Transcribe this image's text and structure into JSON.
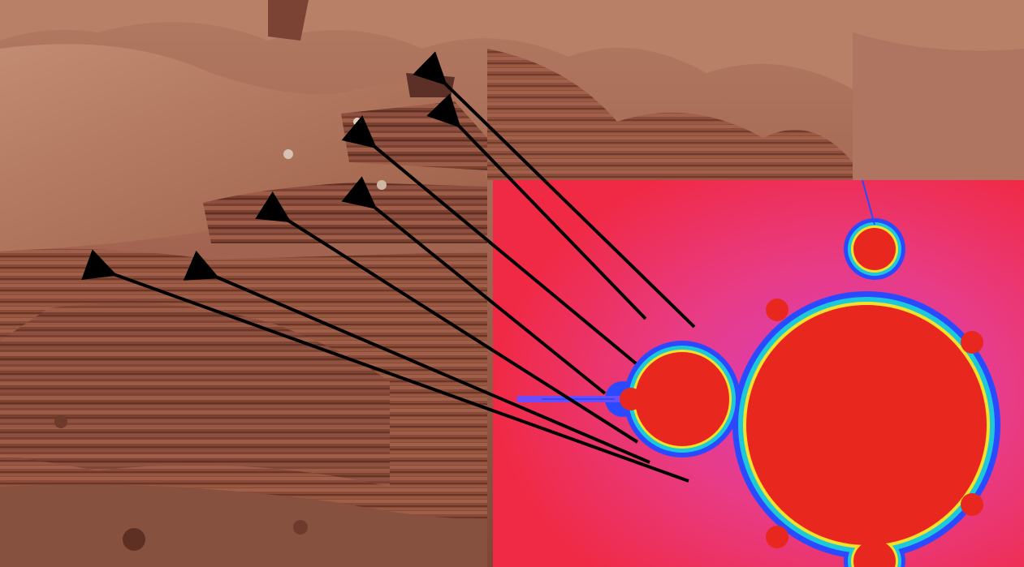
{
  "scene": {
    "left_image": "canyon-rock-formation",
    "right_image": "mandelbrot-set-fractal",
    "annotation": "arrows-linking-rock-ledges-to-fractal-bulbs"
  },
  "colors": {
    "rock_dark": "#6d3a2c",
    "rock_mid": "#9a5a44",
    "rock_light": "#c08a70",
    "fractal_background": "#f02a45",
    "fractal_glow": "#e34da8",
    "fractal_body": "#e8271f",
    "fractal_edge_blue": "#3a5cff",
    "fractal_edge_yellow": "#f5e12a",
    "arrow": "#000000"
  },
  "icons": [
    "arrow-icon"
  ]
}
